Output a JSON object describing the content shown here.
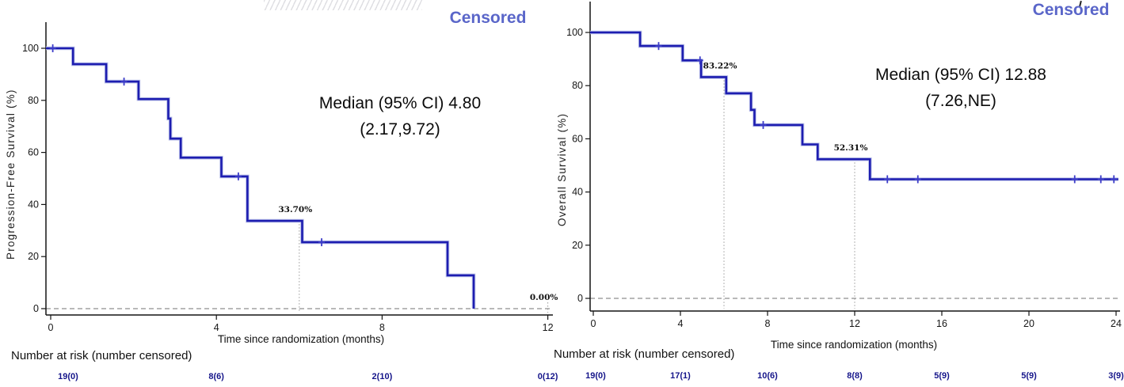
{
  "colors": {
    "curve": "#1d1db0",
    "curve_halo": "#bdc3ea",
    "censor_mark": "#3c3cc8",
    "legend_text": "#5a66c9",
    "risk_text": "#15158a",
    "axis": "#141414",
    "zero_line": "#8f8f8f",
    "landmark_line": "#9a9a9a",
    "landmark_text": "#111111"
  },
  "chart_data": [
    {
      "type": "line",
      "subtype": "kaplan-meier-step",
      "ylabel": "Progression-Free Survival (%)",
      "xlabel": "Time since randomization (months)",
      "legend_label": "Censored",
      "median_line1": "Median (95% CI) 4.80",
      "median_line2": "(2.17,9.72)",
      "risk_header": "Number at risk (number censored)",
      "xticks": [
        0,
        4,
        8,
        12
      ],
      "yticks": [
        0,
        20,
        40,
        60,
        80,
        100
      ],
      "xlim": [
        0,
        12.3
      ],
      "ylim": [
        0,
        100
      ],
      "grid": false,
      "legend_position": "top-right",
      "start": [
        0,
        100
      ],
      "events": [
        [
          0.54,
          93.9
        ],
        [
          1.34,
          87.2
        ],
        [
          2.12,
          80.5
        ],
        [
          2.84,
          73.0
        ],
        [
          2.89,
          65.3
        ],
        [
          3.14,
          58.0
        ],
        [
          4.12,
          50.8
        ],
        [
          4.75,
          33.7
        ],
        [
          6.07,
          25.5
        ],
        [
          9.58,
          12.8
        ],
        [
          10.21,
          0
        ]
      ],
      "curve_end": 10.21,
      "censor_marks": [
        [
          0.05,
          100
        ],
        [
          1.77,
          87.2
        ],
        [
          4.53,
          50.8
        ],
        [
          6.54,
          25.5
        ]
      ],
      "landmarks": [
        {
          "t": 6,
          "value": 33.7,
          "label": "33.70%"
        },
        {
          "t": 12,
          "value": 0.0,
          "label": "0.00%"
        }
      ],
      "number_at_risk": [
        {
          "t": 0,
          "label": "19(0)"
        },
        {
          "t": 4,
          "label": "8(6)"
        },
        {
          "t": 8,
          "label": "2(10)"
        },
        {
          "t": 12,
          "label": "0(12)"
        }
      ]
    },
    {
      "type": "line",
      "subtype": "kaplan-meier-step",
      "ylabel": "Overall Survival (%)",
      "xlabel": "Time since randomization (months)",
      "legend_label": "Censored",
      "median_line1": "Median (95% CI) 12.88",
      "median_line2": "(7.26,NE)",
      "risk_header": "Number at risk (number censored)",
      "xticks": [
        0,
        4,
        8,
        12,
        16,
        20,
        24
      ],
      "yticks": [
        0,
        20,
        40,
        60,
        80,
        100
      ],
      "xlim": [
        0,
        24.2
      ],
      "ylim": [
        0,
        100
      ],
      "grid": false,
      "legend_position": "top-right",
      "start": [
        0,
        100
      ],
      "events": [
        [
          2.15,
          94.9
        ],
        [
          4.1,
          89.5
        ],
        [
          4.95,
          83.22
        ],
        [
          6.1,
          77.1
        ],
        [
          7.24,
          70.9
        ],
        [
          7.4,
          65.2
        ],
        [
          9.6,
          57.9
        ],
        [
          10.3,
          52.31
        ],
        [
          12.7,
          44.8
        ]
      ],
      "curve_end": 24.1,
      "censor_marks": [
        [
          3.0,
          94.9
        ],
        [
          4.9,
          89.5
        ],
        [
          7.8,
          65.2
        ],
        [
          13.5,
          44.8
        ],
        [
          14.9,
          44.8
        ],
        [
          22.1,
          44.8
        ],
        [
          23.3,
          44.8
        ],
        [
          23.9,
          44.8
        ]
      ],
      "landmarks": [
        {
          "t": 6,
          "value": 83.22,
          "label": "83.22%"
        },
        {
          "t": 12,
          "value": 52.31,
          "label": "52.31%"
        }
      ],
      "number_at_risk": [
        {
          "t": 0,
          "label": "19(0)"
        },
        {
          "t": 4,
          "label": "17(1)"
        },
        {
          "t": 8,
          "label": "10(6)"
        },
        {
          "t": 12,
          "label": "8(8)"
        },
        {
          "t": 16,
          "label": "5(9)"
        },
        {
          "t": 20,
          "label": "5(9)"
        },
        {
          "t": 24,
          "label": "3(9)"
        }
      ]
    }
  ]
}
